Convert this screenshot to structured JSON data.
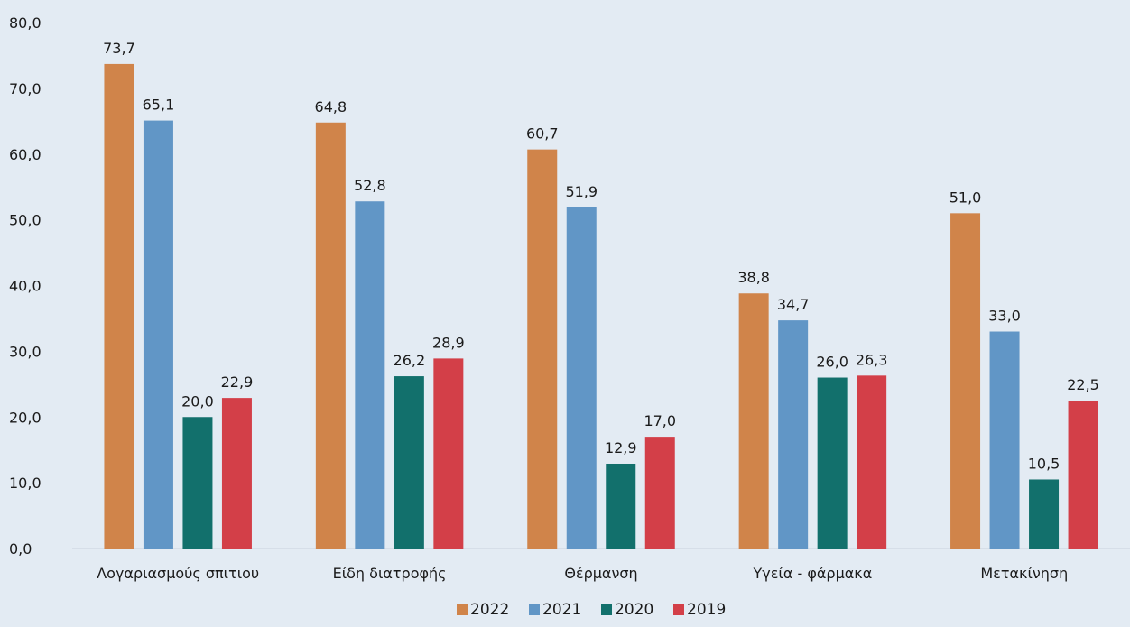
{
  "chart_data": {
    "type": "bar",
    "title": "",
    "xlabel": "",
    "ylabel": "",
    "categories": [
      "Λογαριασμούς σπιτιου",
      "Είδη διατροφής",
      "Θέρμανση",
      "Υγεία - φάρμακα",
      "Μετακίνηση"
    ],
    "series": [
      {
        "name": "2022",
        "color": "#d0844a",
        "values": [
          73.7,
          64.8,
          60.7,
          38.8,
          51.0
        ]
      },
      {
        "name": "2021",
        "color": "#6196c6",
        "values": [
          65.1,
          52.8,
          51.9,
          34.7,
          33.0
        ]
      },
      {
        "name": "2020",
        "color": "#12706c",
        "values": [
          20.0,
          26.2,
          12.9,
          26.0,
          10.5
        ]
      },
      {
        "name": "2019",
        "color": "#d33f48",
        "values": [
          22.9,
          28.9,
          17.0,
          26.3,
          22.5
        ]
      }
    ],
    "ylim": [
      0,
      80
    ],
    "yticks": [
      "0,0",
      "10,0",
      "20,0",
      "30,0",
      "40,0",
      "50,0",
      "60,0",
      "70,0",
      "80,0"
    ],
    "grid": false,
    "legend_position": "bottom-center",
    "data_labels": true
  }
}
